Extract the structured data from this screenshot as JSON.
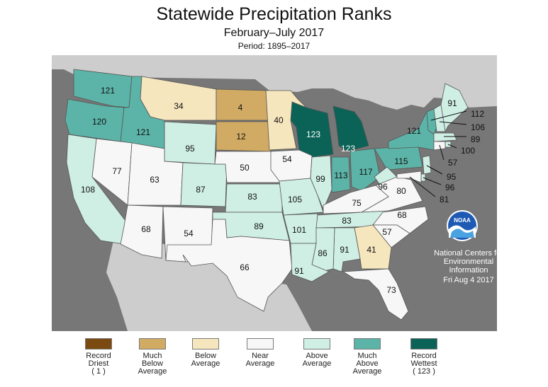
{
  "header": {
    "title": "Statewide Precipitation Ranks",
    "subtitle": "February–July 2017",
    "period": "Period: 1895–2017"
  },
  "credit": {
    "line1": "National Centers for",
    "line2": "Environmental",
    "line3": "Information",
    "date": "Fri Aug  4 2017"
  },
  "logo_text": "NOAA",
  "colors": {
    "record_driest": "#7a4a10",
    "much_below": "#d1ab63",
    "below": "#f6e6be",
    "near": "#f7f7f7",
    "above": "#cfeee4",
    "much_above": "#5cb4a8",
    "record_wettest": "#0b6357",
    "background": "#777777",
    "canada_mexico": "#cdcdcd"
  },
  "legend": [
    {
      "label": "Record\nDriest\n( 1 )",
      "category": "record_driest"
    },
    {
      "label": "Much\nBelow\nAverage",
      "category": "much_below"
    },
    {
      "label": "Below\nAverage",
      "category": "below"
    },
    {
      "label": "Near\nAverage",
      "category": "near"
    },
    {
      "label": "Above\nAverage",
      "category": "above"
    },
    {
      "label": "Much\nAbove\nAverage",
      "category": "much_above"
    },
    {
      "label": "Record\nWettest\n( 123 )",
      "category": "record_wettest"
    }
  ],
  "states": [
    {
      "state": "WA",
      "rank": "121",
      "category": "much_above"
    },
    {
      "state": "OR",
      "rank": "120",
      "category": "much_above"
    },
    {
      "state": "ID",
      "rank": "121",
      "category": "much_above"
    },
    {
      "state": "MT",
      "rank": "34",
      "category": "below"
    },
    {
      "state": "ND",
      "rank": "4",
      "category": "much_below"
    },
    {
      "state": "SD",
      "rank": "12",
      "category": "much_below"
    },
    {
      "state": "MN",
      "rank": "40",
      "category": "below"
    },
    {
      "state": "WI",
      "rank": "123",
      "category": "record_wettest"
    },
    {
      "state": "MI",
      "rank": "123",
      "category": "record_wettest"
    },
    {
      "state": "WY",
      "rank": "95",
      "category": "above"
    },
    {
      "state": "NV",
      "rank": "77",
      "category": "near"
    },
    {
      "state": "CA",
      "rank": "108",
      "category": "above"
    },
    {
      "state": "UT",
      "rank": "63",
      "category": "near"
    },
    {
      "state": "CO",
      "rank": "87",
      "category": "above"
    },
    {
      "state": "NE",
      "rank": "50",
      "category": "near"
    },
    {
      "state": "IA",
      "rank": "54",
      "category": "near"
    },
    {
      "state": "KS",
      "rank": "83",
      "category": "above"
    },
    {
      "state": "MO",
      "rank": "105",
      "category": "above"
    },
    {
      "state": "IL",
      "rank": "99",
      "category": "above"
    },
    {
      "state": "IN",
      "rank": "113",
      "category": "much_above"
    },
    {
      "state": "OH",
      "rank": "117",
      "category": "much_above"
    },
    {
      "state": "PA",
      "rank": "115",
      "category": "much_above"
    },
    {
      "state": "NY",
      "rank": "121",
      "category": "much_above"
    },
    {
      "state": "ME",
      "rank": "91",
      "category": "above"
    },
    {
      "state": "WV",
      "rank": "96",
      "category": "above"
    },
    {
      "state": "VA",
      "rank": "80",
      "category": "near"
    },
    {
      "state": "KY",
      "rank": "75",
      "category": "near"
    },
    {
      "state": "AZ",
      "rank": "68",
      "category": "near"
    },
    {
      "state": "NM",
      "rank": "54",
      "category": "near"
    },
    {
      "state": "OK",
      "rank": "89",
      "category": "above"
    },
    {
      "state": "TX",
      "rank": "66",
      "category": "near"
    },
    {
      "state": "AR",
      "rank": "101",
      "category": "above"
    },
    {
      "state": "TN",
      "rank": "83",
      "category": "above"
    },
    {
      "state": "NC",
      "rank": "68",
      "category": "near"
    },
    {
      "state": "SC",
      "rank": "57",
      "category": "near"
    },
    {
      "state": "GA",
      "rank": "41",
      "category": "below"
    },
    {
      "state": "AL",
      "rank": "91",
      "category": "above"
    },
    {
      "state": "MS",
      "rank": "86",
      "category": "above"
    },
    {
      "state": "LA",
      "rank": "91",
      "category": "above"
    },
    {
      "state": "FL",
      "rank": "73",
      "category": "near"
    },
    {
      "state": "VT",
      "rank": "112",
      "category": "much_above"
    },
    {
      "state": "NH",
      "rank": "106",
      "category": "above"
    },
    {
      "state": "MA",
      "rank": "89",
      "category": "above"
    },
    {
      "state": "RI",
      "rank": "100",
      "category": "above"
    },
    {
      "state": "CT",
      "rank": "57",
      "category": "near"
    },
    {
      "state": "NJ",
      "rank": "95",
      "category": "above"
    },
    {
      "state": "DE",
      "rank": "96",
      "category": "above"
    },
    {
      "state": "MD",
      "rank": "81",
      "category": "near"
    }
  ]
}
